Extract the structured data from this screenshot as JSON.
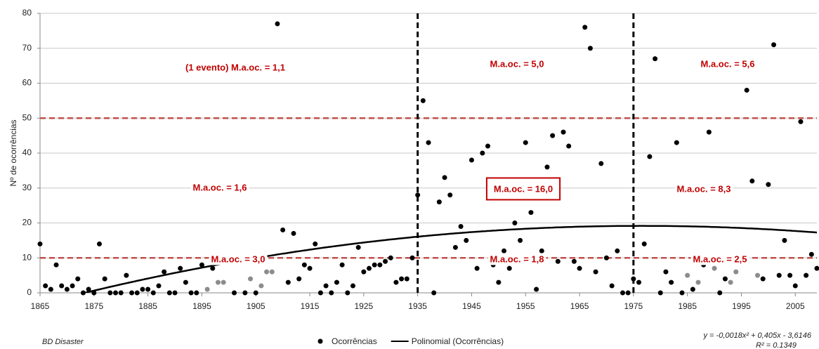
{
  "chart_data": {
    "type": "scatter",
    "ylabel": "Nº de ocorrências",
    "xlim": [
      1865,
      2009
    ],
    "ylim": [
      0,
      80
    ],
    "xticks": [
      1865,
      1875,
      1885,
      1895,
      1905,
      1915,
      1925,
      1935,
      1945,
      1955,
      1965,
      1975,
      1985,
      1995,
      2005
    ],
    "yticks": [
      0,
      10,
      20,
      30,
      40,
      50,
      60,
      70,
      80
    ],
    "grid": true,
    "series": [
      {
        "name": "Ocorrências",
        "color": "#000000",
        "x": [
          1865,
          1866,
          1867,
          1868,
          1869,
          1870,
          1871,
          1872,
          1873,
          1874,
          1875,
          1876,
          1877,
          1878,
          1879,
          1880,
          1881,
          1882,
          1883,
          1884,
          1885,
          1886,
          1887,
          1888,
          1889,
          1890,
          1891,
          1892,
          1893,
          1894,
          1895,
          1897,
          1900,
          1901,
          1902,
          1903,
          1905,
          1909,
          1910,
          1911,
          1912,
          1913,
          1914,
          1915,
          1916,
          1917,
          1918,
          1919,
          1920,
          1921,
          1922,
          1923,
          1924,
          1925,
          1926,
          1927,
          1928,
          1929,
          1930,
          1931,
          1932,
          1933,
          1934,
          1935,
          1936,
          1937,
          1938,
          1939,
          1940,
          1941,
          1942,
          1943,
          1944,
          1945,
          1946,
          1947,
          1948,
          1949,
          1950,
          1951,
          1952,
          1953,
          1954,
          1955,
          1956,
          1957,
          1958,
          1959,
          1960,
          1961,
          1962,
          1963,
          1964,
          1965,
          1966,
          1967,
          1968,
          1969,
          1970,
          1971,
          1972,
          1973,
          1974,
          1975,
          1976,
          1977,
          1978,
          1979,
          1980,
          1981,
          1982,
          1983,
          1984,
          1986,
          1988,
          1989,
          1991,
          1992,
          1995,
          1996,
          1997,
          1999,
          2000,
          2001,
          2002,
          2003,
          2004,
          2005,
          2006,
          2007,
          2008,
          2009
        ],
        "values": [
          14,
          2,
          1,
          8,
          2,
          1,
          2,
          4,
          0,
          1,
          0,
          14,
          4,
          0,
          0,
          0,
          5,
          0,
          0,
          1,
          1,
          0,
          2,
          6,
          0,
          0,
          7,
          3,
          0,
          0,
          8,
          7,
          10,
          0,
          9,
          0,
          0,
          77,
          18,
          3,
          17,
          4,
          8,
          7,
          14,
          0,
          2,
          0,
          3,
          8,
          0,
          2,
          13,
          6,
          7,
          8,
          8,
          9,
          10,
          3,
          4,
          4,
          10,
          28,
          55,
          43,
          0,
          26,
          33,
          28,
          13,
          19,
          15,
          38,
          7,
          40,
          42,
          8,
          3,
          12,
          7,
          20,
          15,
          43,
          23,
          1,
          12,
          36,
          45,
          9,
          46,
          42,
          9,
          7,
          76,
          70,
          6,
          37,
          10,
          2,
          12,
          0,
          0,
          4,
          3,
          14,
          39,
          67,
          0,
          6,
          3,
          43,
          0,
          1,
          8,
          46,
          0,
          4,
          9,
          58,
          32,
          4,
          31,
          71,
          5,
          15,
          5,
          2,
          49,
          5,
          11,
          7
        ]
      },
      {
        "color": "#8c8c8c",
        "x": [
          1896,
          1898,
          1899,
          1904,
          1906,
          1907,
          1908,
          1985,
          1987,
          1990,
          1993,
          1994,
          1998
        ],
        "values": [
          1,
          3,
          3,
          4,
          2,
          6,
          6,
          5,
          3,
          7,
          3,
          6,
          5
        ]
      }
    ],
    "reference_lines": {
      "y": [
        10,
        50
      ],
      "y_color": "#c0504d",
      "x": [
        1935,
        1975
      ],
      "x_color": "#000000"
    },
    "trendline": {
      "name": "Polinomial (Ocorrências)",
      "color": "#000000",
      "coefficients": [
        -0.0018,
        0.405,
        -3.6146
      ],
      "origin": 1864,
      "equation": "y = -0,0018x² + 0,405x - 3,6146",
      "r2": "R² = 0.1349"
    },
    "annotations": [
      "(1 evento) M.a.oc. = 1,1",
      "M.a.oc. = 5,0",
      "M.a.oc. = 5,6",
      "M.a.oc. = 1,6",
      "M.a.oc. = 16,0",
      "M.a.oc. = 8,3",
      "M.a.oc. = 3,0",
      "M.a.oc. = 1,8",
      "M.a.oc. = 2,5"
    ],
    "source": "BD Disaster"
  }
}
